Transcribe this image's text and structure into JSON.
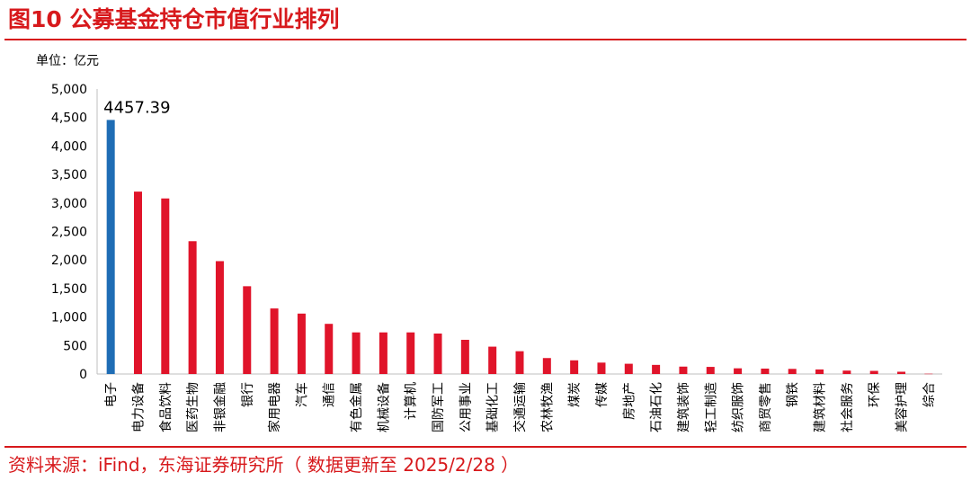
{
  "header": {
    "title": "图10 公募基金持仓市值行业排列"
  },
  "footer": {
    "source": "资料来源：iFind，东海证券研究所（ 数据更新至 2025/2/28 ）"
  },
  "colors": {
    "brand_red": "#d7191c",
    "highlight_blue": "#1f6db5",
    "bar_red": "#e0142a"
  },
  "chart_data": {
    "type": "bar",
    "title": "图10 公募基金持仓市值行业排列",
    "unit_label": "单位：亿元",
    "xlabel": "",
    "ylabel": "",
    "ylim": [
      0,
      5000
    ],
    "yticks": [
      0,
      500,
      1000,
      1500,
      2000,
      2500,
      3000,
      3500,
      4000,
      4500,
      5000
    ],
    "ytick_labels": [
      "0",
      "500",
      "1,000",
      "1,500",
      "2,000",
      "2,500",
      "3,000",
      "3,500",
      "4,000",
      "4,500",
      "5,000"
    ],
    "categories": [
      "电子",
      "电力设备",
      "食品饮料",
      "医药生物",
      "非银金融",
      "银行",
      "家用电器",
      "汽车",
      "通信",
      "有色金属",
      "机械设备",
      "计算机",
      "国防军工",
      "公用事业",
      "基础化工",
      "交通运输",
      "农林牧渔",
      "煤炭",
      "传媒",
      "房地产",
      "石油石化",
      "建筑装饰",
      "轻工制造",
      "纺织服饰",
      "商贸零售",
      "钢铁",
      "建筑材料",
      "社会服务",
      "环保",
      "美容护理",
      "综合"
    ],
    "values": [
      4457.39,
      3200,
      3080,
      2330,
      1980,
      1540,
      1150,
      1060,
      880,
      730,
      730,
      730,
      710,
      600,
      480,
      400,
      280,
      240,
      200,
      180,
      160,
      130,
      125,
      100,
      95,
      90,
      80,
      60,
      55,
      40,
      5
    ],
    "highlight_index": 0,
    "data_labels": [
      {
        "index": 0,
        "text": "4457.39"
      }
    ],
    "grid": false,
    "legend": "none"
  }
}
